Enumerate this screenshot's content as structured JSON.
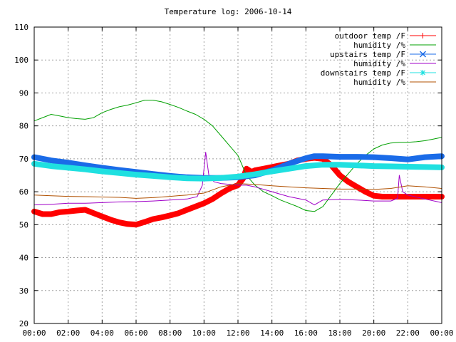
{
  "chart_data": {
    "type": "line",
    "title": "Temperature log: 2006-10-14",
    "xlabel": "",
    "ylabel": "",
    "xlim": [
      0,
      24
    ],
    "ylim": [
      20,
      110
    ],
    "grid": true,
    "legend_position": "top-right",
    "x_ticks": [
      "00:00",
      "02:00",
      "04:00",
      "06:00",
      "08:00",
      "10:00",
      "12:00",
      "14:00",
      "16:00",
      "18:00",
      "20:00",
      "22:00",
      "00:00"
    ],
    "y_ticks": [
      "20",
      "30",
      "40",
      "50",
      "60",
      "70",
      "80",
      "90",
      "100",
      "110"
    ],
    "series": [
      {
        "name": "outdoor temp /F",
        "color": "#ff0000",
        "marker": "plus",
        "x": [
          0,
          0.5,
          1,
          1.5,
          2,
          2.5,
          3,
          3.5,
          4,
          4.5,
          5,
          5.5,
          6,
          6.5,
          7,
          7.5,
          8,
          8.5,
          9,
          9.5,
          10,
          10.5,
          11,
          11.5,
          12,
          12.3,
          12.5,
          12.8,
          13,
          13.5,
          14,
          14.5,
          15,
          15.5,
          16,
          16.5,
          17,
          17.5,
          18,
          18.5,
          19,
          19.5,
          20,
          20.5,
          21,
          21.5,
          22,
          22.5,
          23,
          23.5,
          24
        ],
        "y": [
          54,
          53.2,
          53.2,
          53.8,
          54,
          54.3,
          54.5,
          53.5,
          52.5,
          51.5,
          50.7,
          50.2,
          50,
          50.8,
          51.7,
          52.2,
          52.8,
          53.5,
          54.5,
          55.5,
          56.5,
          57.8,
          59.5,
          61,
          62,
          64,
          67,
          66,
          66.5,
          67,
          67.5,
          68,
          68.5,
          69.5,
          70,
          70.3,
          70,
          68,
          65,
          63,
          61.5,
          60,
          58.8,
          58.5,
          58.5,
          58.5,
          58.5,
          58.5,
          58.5,
          58.5,
          58.5
        ]
      },
      {
        "name": "humidity /%",
        "color": "#00a000",
        "marker": "",
        "x": [
          0,
          0.5,
          1,
          1.5,
          2,
          2.5,
          3,
          3.5,
          4,
          4.5,
          5,
          5.5,
          6,
          6.5,
          7,
          7.5,
          8,
          8.5,
          9,
          9.5,
          10,
          10.5,
          11,
          11.5,
          12,
          12.5,
          13,
          13.5,
          14,
          14.5,
          15,
          15.5,
          16,
          16.5,
          17,
          17.5,
          18,
          18.5,
          19,
          19.5,
          20,
          20.5,
          21,
          21.5,
          22,
          22.5,
          23,
          23.5,
          24
        ],
        "y": [
          81.5,
          82.5,
          83.5,
          83,
          82.5,
          82.2,
          82,
          82.5,
          84,
          85,
          85.8,
          86.3,
          87,
          87.8,
          87.8,
          87.3,
          86.5,
          85.6,
          84.5,
          83.5,
          82,
          80,
          77,
          74,
          71,
          65,
          62,
          60,
          58.8,
          57.5,
          56.5,
          55.5,
          54.3,
          54,
          55.5,
          59,
          62.5,
          65.5,
          68.5,
          71,
          73,
          74.2,
          74.8,
          75,
          75,
          75.2,
          75.5,
          76,
          76.5
        ]
      },
      {
        "name": "upstairs temp /F",
        "color": "#1a6be8",
        "marker": "cross",
        "x": [
          0,
          1,
          2,
          3,
          4,
          5,
          6,
          7,
          8,
          9,
          10,
          11,
          12,
          13,
          14,
          15,
          16,
          16.5,
          17,
          18,
          19,
          20,
          21,
          22,
          23,
          24
        ],
        "y": [
          70.5,
          69.5,
          68.8,
          68,
          67.3,
          66.6,
          66,
          65.4,
          64.8,
          64.4,
          64.2,
          64.2,
          64.4,
          65,
          66.5,
          68.5,
          70.2,
          70.8,
          70.8,
          70.6,
          70.6,
          70.5,
          70.2,
          69.8,
          70.5,
          70.8
        ]
      },
      {
        "name": "humidity /%",
        "color": "#a000c8",
        "marker": "",
        "x": [
          0,
          1,
          2,
          3,
          4,
          5,
          6,
          7,
          8,
          9,
          9.6,
          9.9,
          10.1,
          10.3,
          10.6,
          11,
          12,
          12.5,
          13,
          14,
          15,
          16,
          16.5,
          17,
          18,
          19,
          20,
          21,
          21.4,
          21.5,
          21.7,
          22,
          23,
          24
        ],
        "y": [
          56,
          56.2,
          56.5,
          56.5,
          56.7,
          56.9,
          57,
          57.2,
          57.5,
          57.8,
          58.5,
          62,
          72,
          64.5,
          63,
          62.5,
          62,
          62,
          61.5,
          60,
          58.5,
          57.5,
          56,
          57.5,
          57.7,
          57.5,
          57.2,
          57.2,
          58,
          65,
          60,
          59,
          57.8,
          56.7
        ]
      },
      {
        "name": "downstairs temp /F",
        "color": "#1fe0e0",
        "marker": "star",
        "x": [
          0,
          1,
          2,
          3,
          4,
          5,
          6,
          7,
          8,
          9,
          10,
          11,
          12,
          13,
          14,
          15,
          16,
          17,
          18,
          19,
          20,
          21,
          22,
          23,
          24
        ],
        "y": [
          68.5,
          67.8,
          67.3,
          66.8,
          66.2,
          65.7,
          65.2,
          64.8,
          64.4,
          64.1,
          64,
          64.2,
          64.6,
          65.3,
          66.2,
          67,
          67.8,
          68.2,
          68.2,
          68,
          67.8,
          67.7,
          67.6,
          67.5,
          67.4
        ]
      },
      {
        "name": "humidity /%",
        "color": "#b05000",
        "marker": "",
        "x": [
          0,
          1,
          2,
          3,
          4,
          5,
          6,
          7,
          8,
          9,
          10,
          11,
          12,
          13,
          14,
          15,
          16,
          17,
          18,
          19,
          20,
          21,
          22,
          23,
          24
        ],
        "y": [
          59,
          58.8,
          58.6,
          58.5,
          58.4,
          58.3,
          58,
          58.2,
          58.6,
          59,
          59.6,
          61.5,
          62.5,
          62.2,
          61.8,
          61.5,
          61.2,
          61,
          60.8,
          60.8,
          60.7,
          61,
          61.8,
          61.5,
          61
        ]
      }
    ]
  }
}
